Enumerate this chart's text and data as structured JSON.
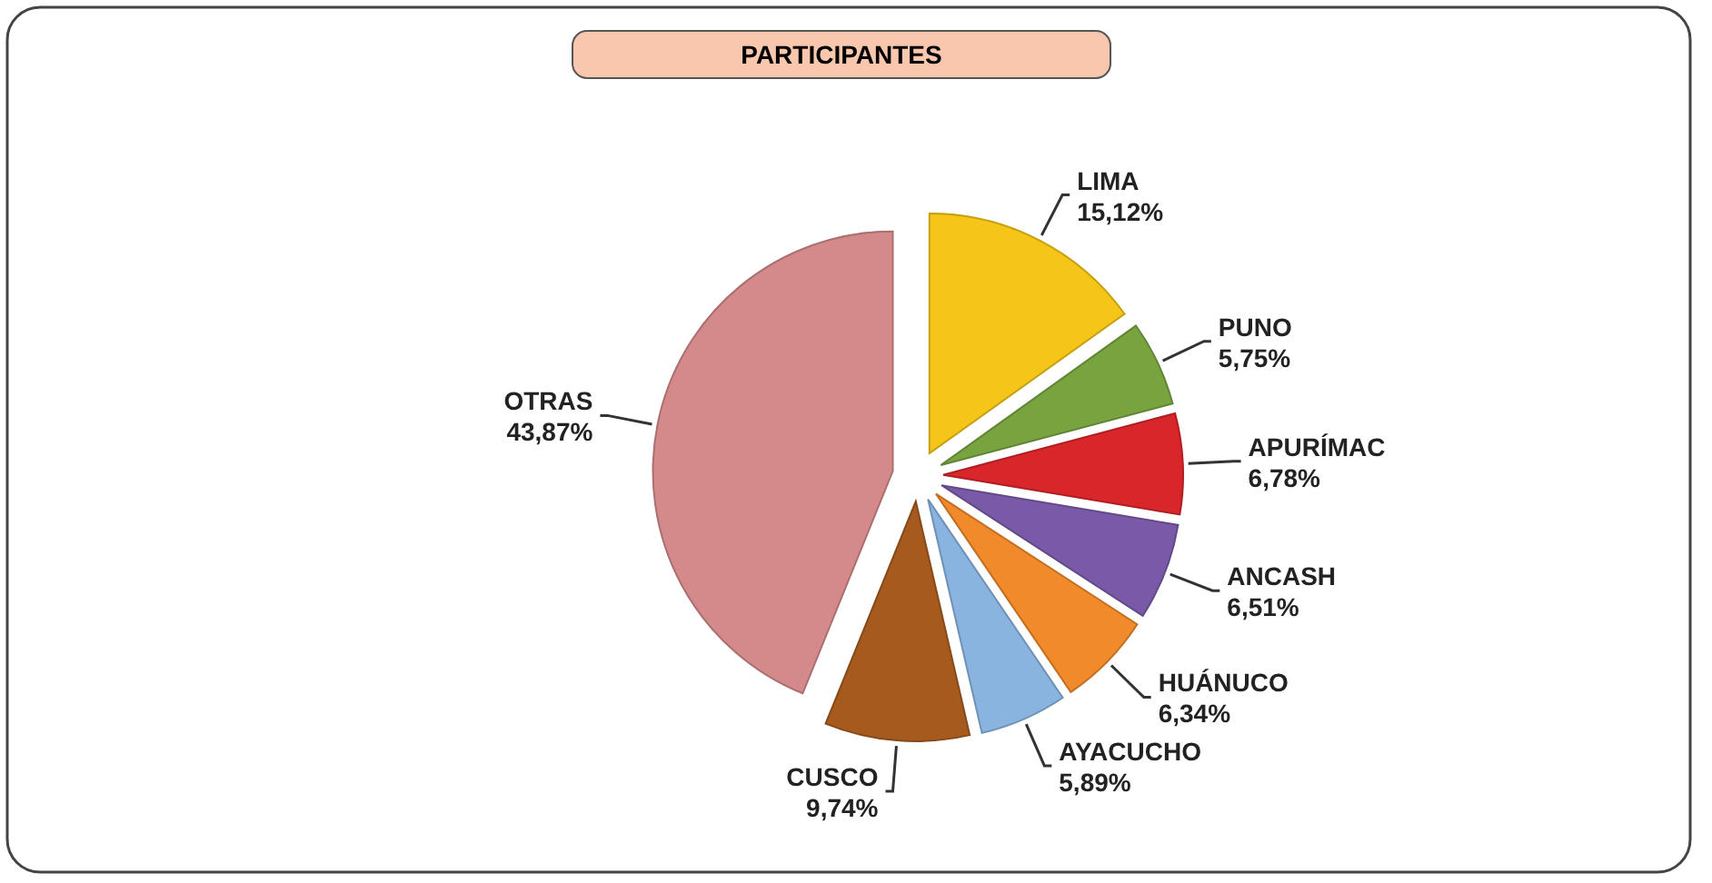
{
  "chart_data": {
    "type": "pie",
    "title": "PARTICIPANTES",
    "categories": [
      "LIMA",
      "PUNO",
      "APURÍMAC",
      "ANCASH",
      "HUÁNUCO",
      "AYACUCHO",
      "CUSCO",
      "OTRAS"
    ],
    "values": [
      15.12,
      5.75,
      6.78,
      6.51,
      6.34,
      5.89,
      9.74,
      43.87
    ],
    "value_labels": [
      "15,12%",
      "5,75%",
      "6,78%",
      "6,51%",
      "6,34%",
      "5,89%",
      "9,74%",
      "43,87%"
    ],
    "colors": [
      "#f5c518",
      "#78a440",
      "#d9262a",
      "#7a5aa8",
      "#f08a2a",
      "#8ab4e0",
      "#a65a1e",
      "#d48a8a"
    ]
  }
}
